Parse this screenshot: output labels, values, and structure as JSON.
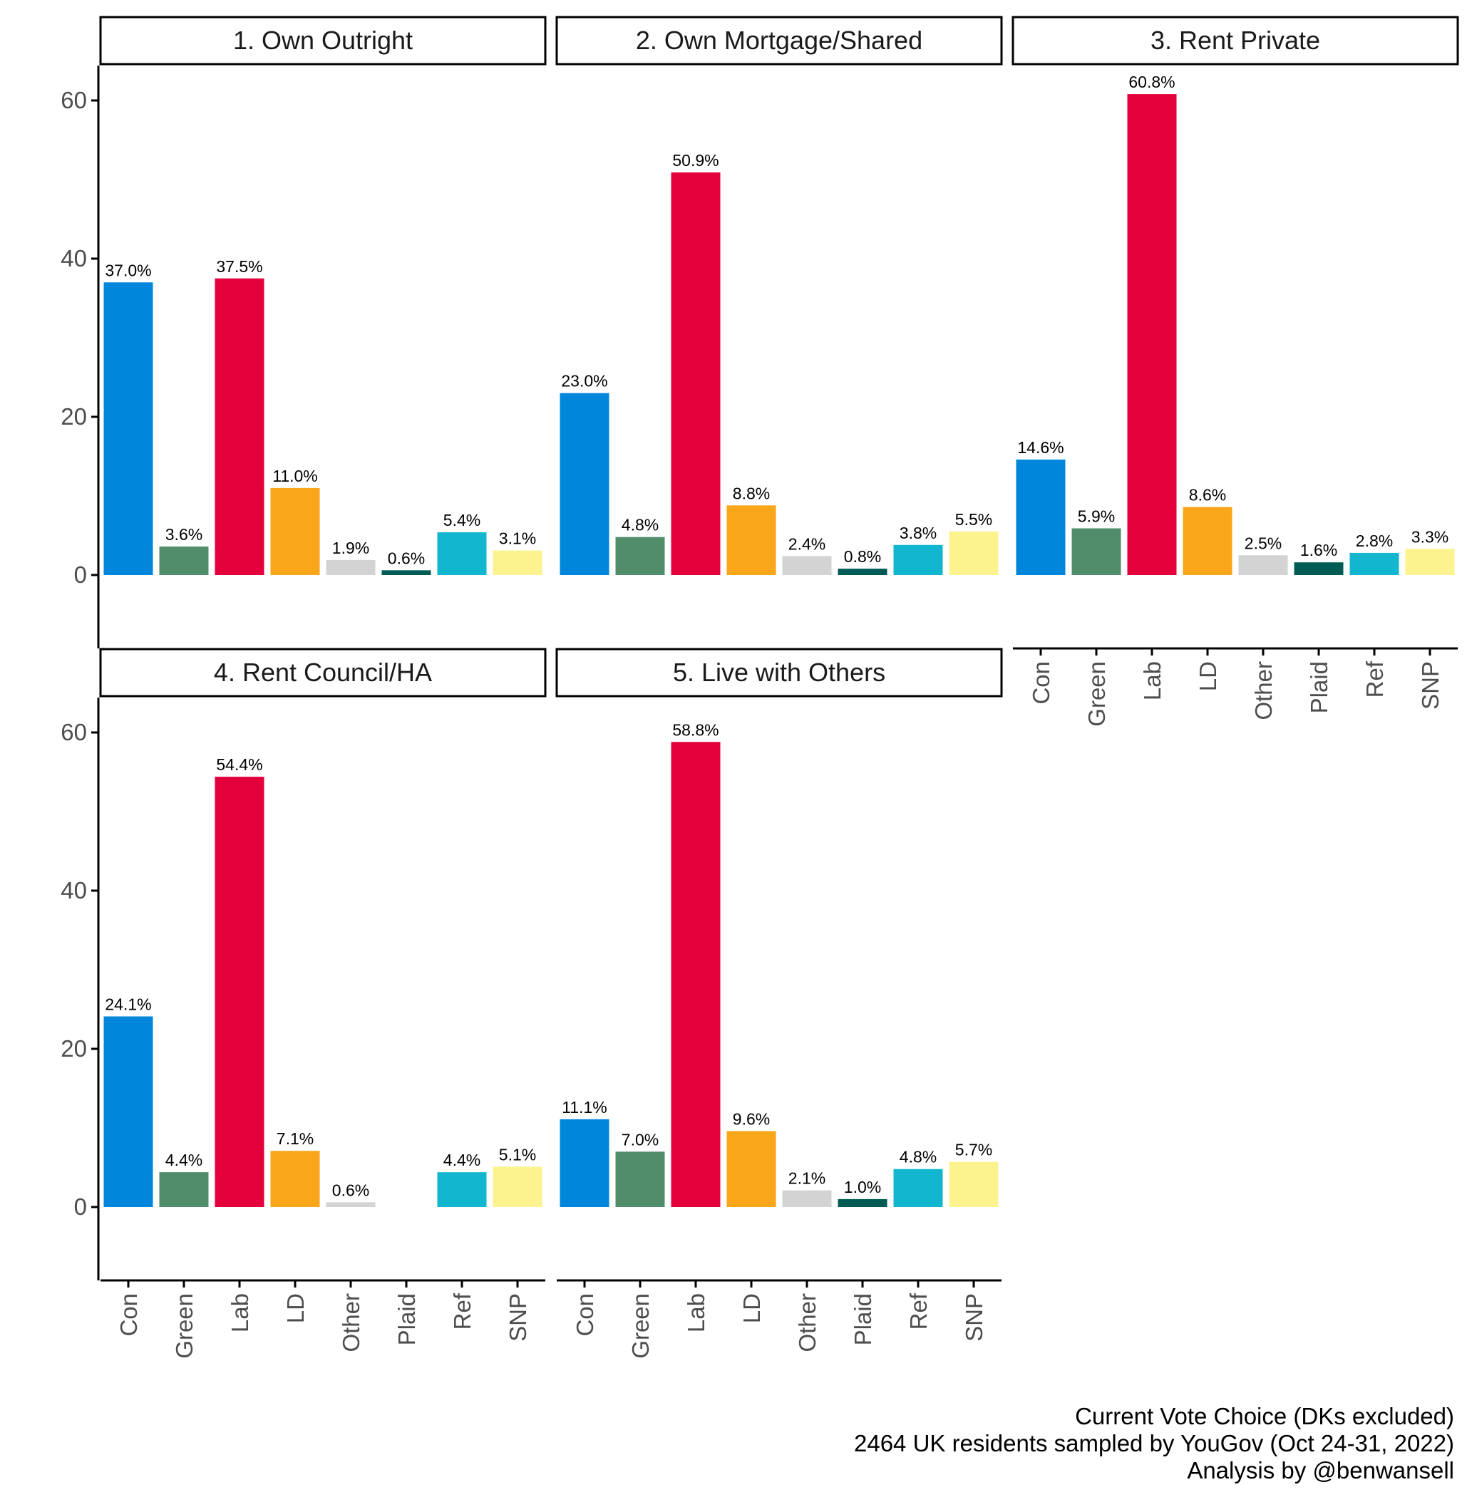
{
  "chart_data": {
    "type": "bar",
    "categories": [
      "Con",
      "Green",
      "Lab",
      "LD",
      "Other",
      "Plaid",
      "Ref",
      "SNP"
    ],
    "colors": {
      "Con": "#0087dc",
      "Green": "#528d6b",
      "Lab": "#e4003b",
      "LD": "#faa61a",
      "Other": "#d3d3d3",
      "Plaid": "#005b54",
      "Ref": "#12b6cf",
      "SNP": "#fdf38e"
    },
    "ylim": [
      0,
      68
    ],
    "yticks": [
      0,
      20,
      40,
      60
    ],
    "panels": [
      {
        "title": "1. Own Outright",
        "values": [
          37.0,
          3.6,
          37.5,
          11.0,
          1.9,
          0.6,
          5.4,
          3.1
        ],
        "labels": [
          "37.0%",
          "3.6%",
          "37.5%",
          "11.0%",
          "1.9%",
          "0.6%",
          "5.4%",
          "3.1%"
        ]
      },
      {
        "title": "2. Own Mortgage/Shared",
        "values": [
          23.0,
          4.8,
          50.9,
          8.8,
          2.4,
          0.8,
          3.8,
          5.5
        ],
        "labels": [
          "23.0%",
          "4.8%",
          "50.9%",
          "8.8%",
          "2.4%",
          "0.8%",
          "3.8%",
          "5.5%"
        ]
      },
      {
        "title": "3. Rent Private",
        "values": [
          14.6,
          5.9,
          60.8,
          8.6,
          2.5,
          1.6,
          2.8,
          3.3
        ],
        "labels": [
          "14.6%",
          "5.9%",
          "60.8%",
          "8.6%",
          "2.5%",
          "1.6%",
          "2.8%",
          "3.3%"
        ]
      },
      {
        "title": "4. Rent Council/HA",
        "values": [
          24.1,
          4.4,
          54.4,
          7.1,
          0.6,
          null,
          4.4,
          5.1
        ],
        "labels": [
          "24.1%",
          "4.4%",
          "54.4%",
          "7.1%",
          "0.6%",
          "",
          "4.4%",
          "5.1%"
        ]
      },
      {
        "title": "5. Live with Others",
        "values": [
          11.1,
          7.0,
          58.8,
          9.6,
          2.1,
          1.0,
          4.8,
          5.7
        ],
        "labels": [
          "11.1%",
          "7.0%",
          "58.8%",
          "9.6%",
          "2.1%",
          "1.0%",
          "4.8%",
          "5.7%"
        ]
      }
    ],
    "caption": [
      "Current Vote Choice (DKs excluded)",
      "2464 UK residents sampled by YouGov (Oct 24-31, 2022)",
      "Analysis by @benwansell"
    ],
    "grid": false,
    "legend": "none"
  }
}
